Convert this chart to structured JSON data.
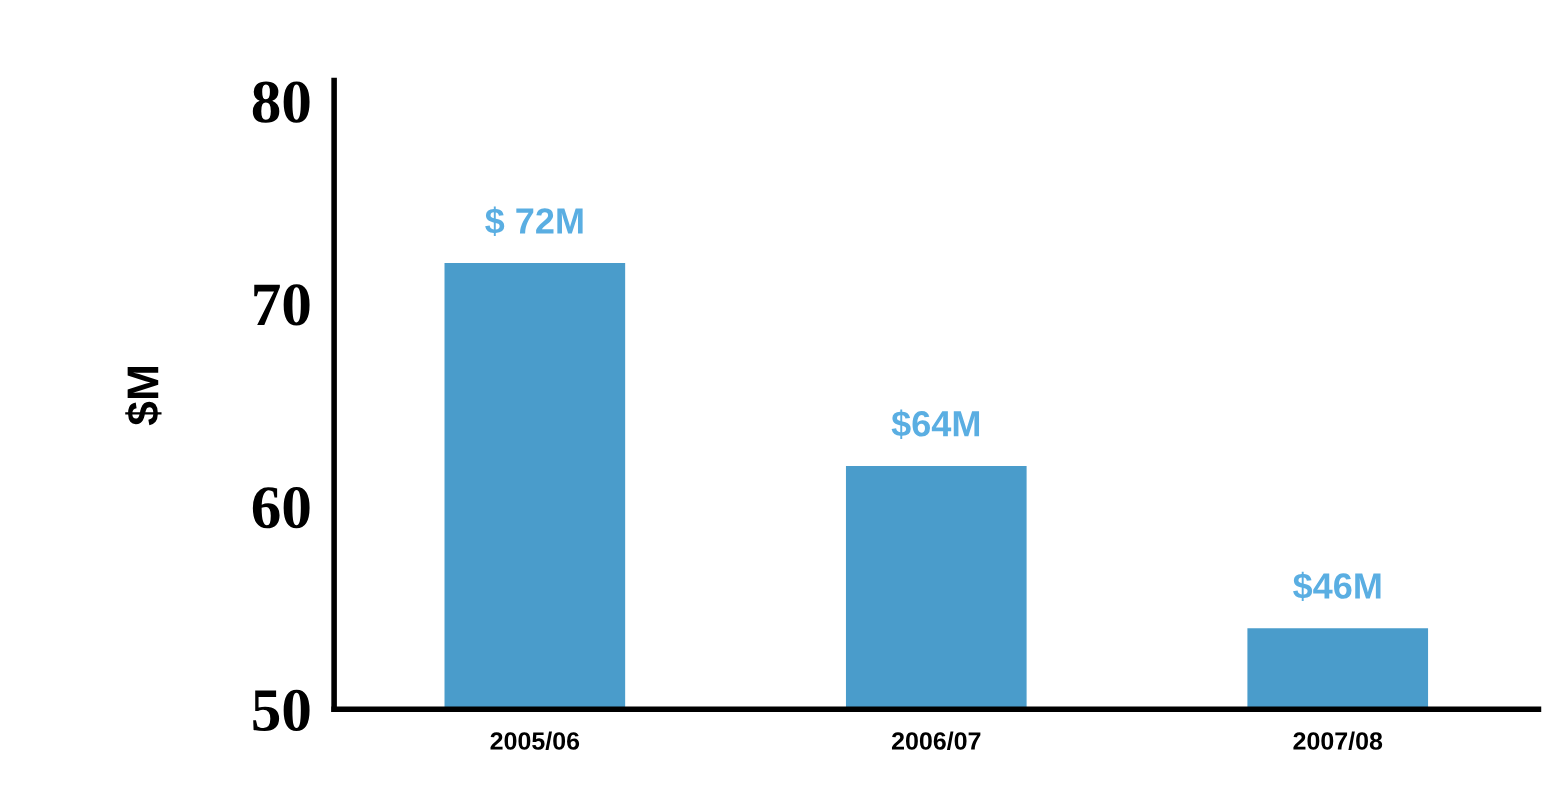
{
  "chart_data": {
    "type": "bar",
    "ylabel": "$M",
    "categories": [
      "2005/06",
      "2006/07",
      "2007/08"
    ],
    "values": [
      72,
      62,
      54
    ],
    "color": "#4a9ccb",
    "ylim": [
      50,
      81
    ],
    "yticks": [
      50,
      60,
      70,
      80
    ],
    "grid": false,
    "annotations": [
      {
        "text": "$ 72M",
        "x": "2005/06",
        "y": 72
      },
      {
        "text": "$64M",
        "x": "2006/07",
        "y": 62
      },
      {
        "text": "$46M",
        "x": "2007/08",
        "y": 54
      }
    ]
  }
}
